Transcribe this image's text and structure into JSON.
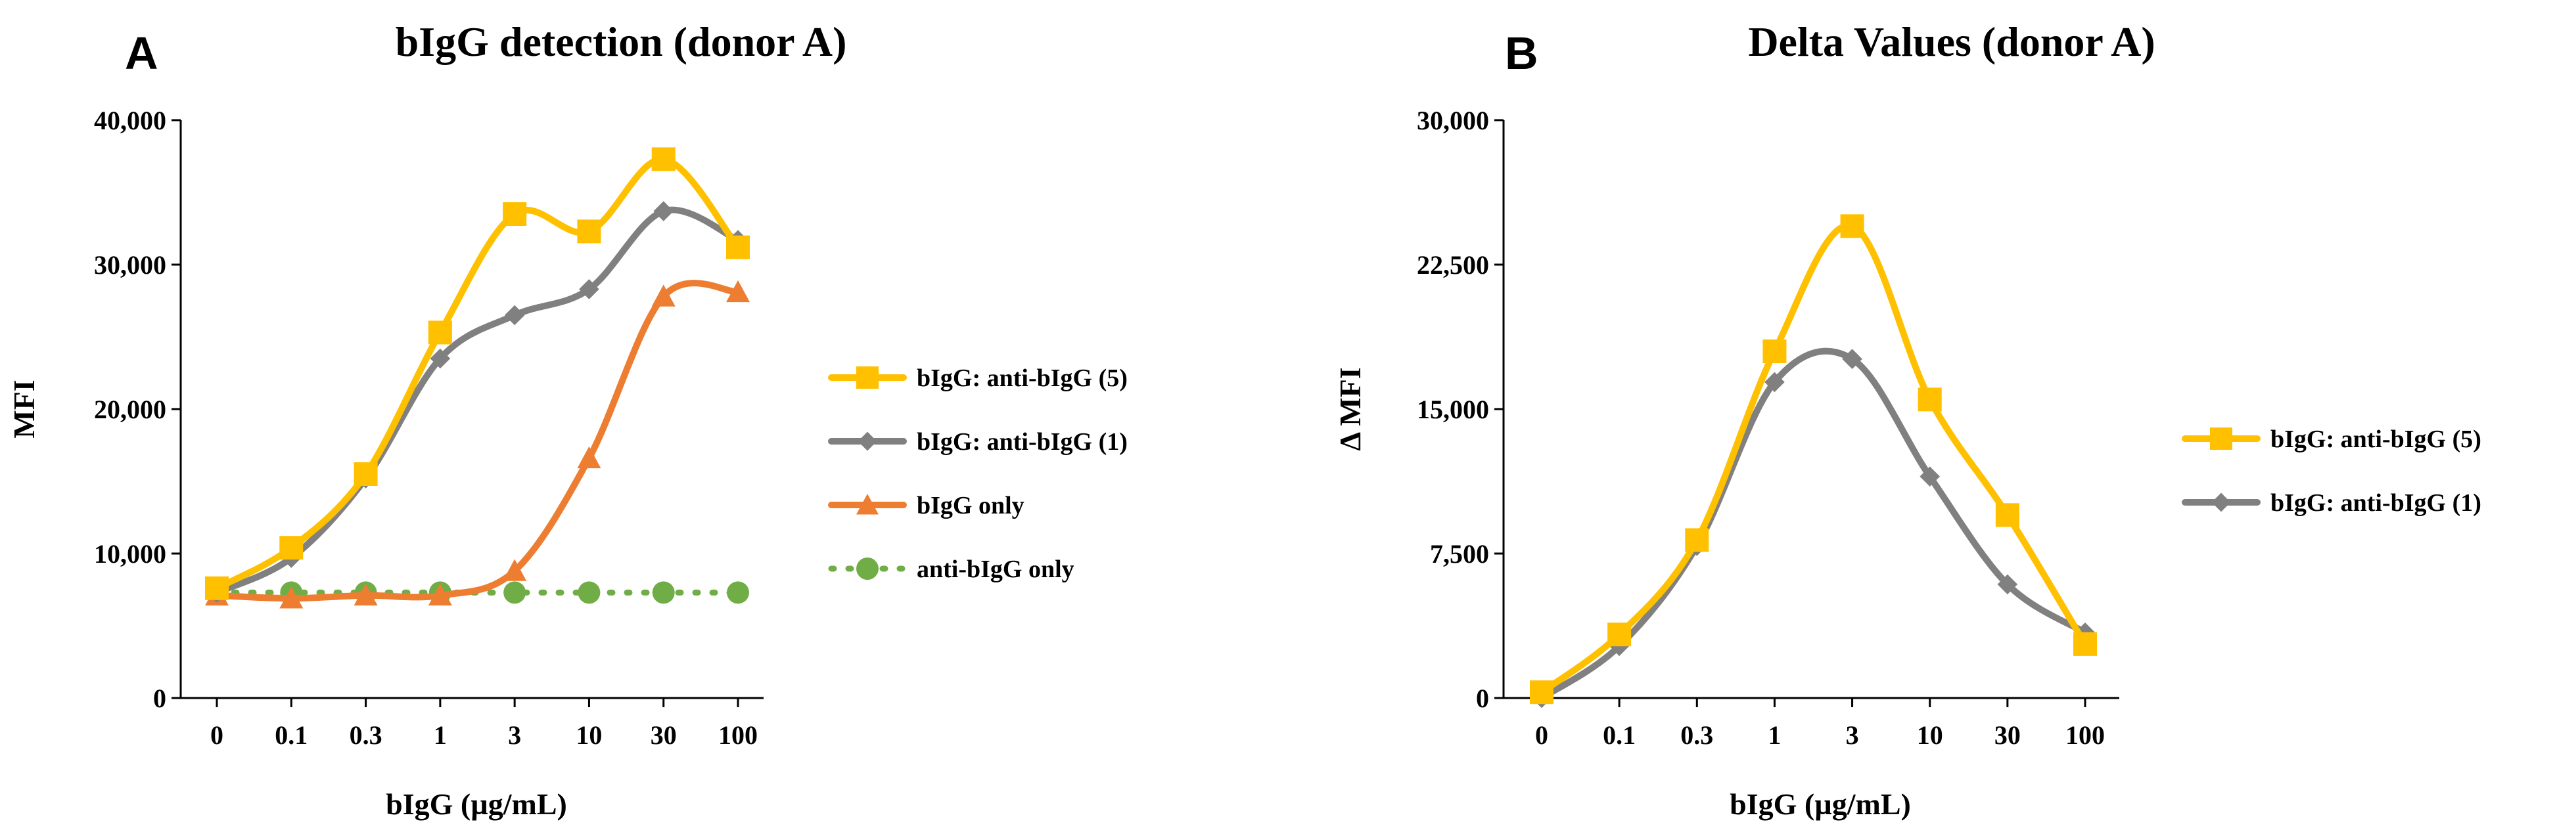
{
  "chart_data": [
    {
      "panel": "A",
      "type": "line",
      "title": "bIgG detection (donor A)",
      "xlabel": "bIgG (µg/mL)",
      "ylabel": "MFI",
      "categories": [
        "0",
        "0.1",
        "0.3",
        "1",
        "3",
        "10",
        "30",
        "100"
      ],
      "ylim": [
        0,
        40000
      ],
      "yticks": [
        0,
        10000,
        20000,
        30000,
        40000
      ],
      "ytick_labels": [
        "0",
        "10,000",
        "20,000",
        "30,000",
        "40,000"
      ],
      "legend_position": "right",
      "series": [
        {
          "name": "bIgG: anti-bIgG (5)",
          "color": "#FFC000",
          "marker": "square",
          "dash": false,
          "values": [
            7600,
            10400,
            15500,
            25300,
            33500,
            32300,
            37300,
            31200
          ]
        },
        {
          "name": "bIgG: anti-bIgG (1)",
          "color": "#808080",
          "marker": "diamond",
          "dash": false,
          "values": [
            7300,
            9700,
            15200,
            23500,
            26500,
            28300,
            33700,
            31700
          ]
        },
        {
          "name": "bIgG only",
          "color": "#ED7D31",
          "marker": "triangle",
          "dash": false,
          "values": [
            7100,
            6900,
            7100,
            7100,
            8800,
            16600,
            27800,
            28100
          ]
        },
        {
          "name": "anti-bIgG only",
          "color": "#70AD47",
          "marker": "circle",
          "dash": true,
          "values": [
            7300,
            7300,
            7300,
            7300,
            7300,
            7300,
            7300,
            7300
          ]
        }
      ]
    },
    {
      "panel": "B",
      "type": "line",
      "title": "Delta Values (donor A)",
      "xlabel": "bIgG (µg/mL)",
      "ylabel": "Δ MFI",
      "categories": [
        "0",
        "0.1",
        "0.3",
        "1",
        "3",
        "10",
        "30",
        "100"
      ],
      "ylim": [
        0,
        30000
      ],
      "yticks": [
        0,
        7500,
        15000,
        22500,
        30000
      ],
      "ytick_labels": [
        "0",
        "7,500",
        "15,000",
        "22,500",
        "30,000"
      ],
      "legend_position": "right",
      "series": [
        {
          "name": "bIgG: anti-bIgG (5)",
          "color": "#FFC000",
          "marker": "square",
          "dash": false,
          "values": [
            300,
            3300,
            8200,
            18000,
            24500,
            15500,
            9500,
            2800
          ]
        },
        {
          "name": "bIgG: anti-bIgG (1)",
          "color": "#808080",
          "marker": "diamond",
          "dash": false,
          "values": [
            0,
            2700,
            7900,
            16400,
            17600,
            11500,
            5900,
            3400
          ]
        }
      ]
    }
  ]
}
